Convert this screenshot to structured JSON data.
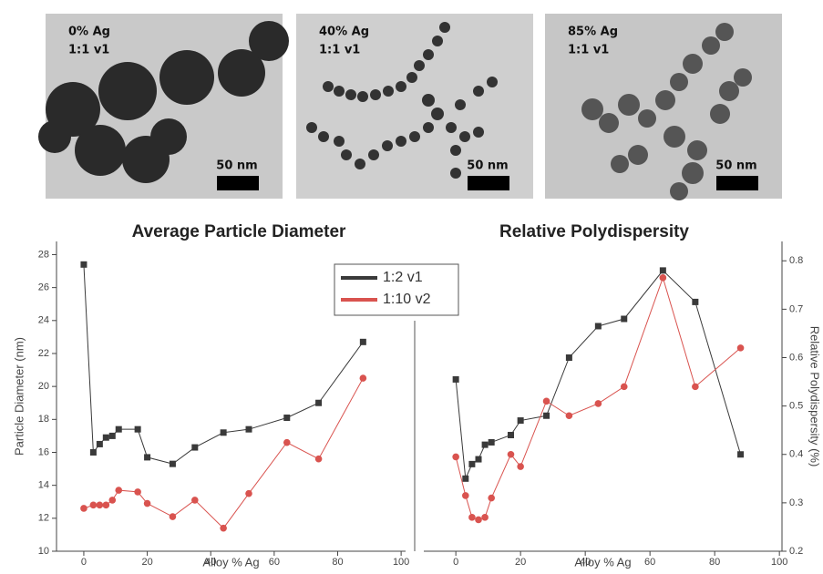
{
  "panels": [
    {
      "label": "0% Ag",
      "sublabel": "1:1 v1",
      "scale": "50 nm"
    },
    {
      "label": "40% Ag",
      "sublabel": "1:1 v1",
      "scale": "50 nm"
    },
    {
      "label": "85% Ag",
      "sublabel": "1:1 v1",
      "scale": "50 nm"
    }
  ],
  "chart_data": [
    {
      "type": "line",
      "title": "Average Particle Diameter",
      "x_label": "Alloy % Ag",
      "y_label": "Particle Diameter (nm)",
      "x": [
        0,
        3,
        5,
        7,
        9,
        11,
        17,
        20,
        28,
        35,
        44,
        52,
        64,
        74,
        88
      ],
      "series": [
        {
          "name": "1:2 v1",
          "color": "#3a3a3a",
          "marker": "square",
          "values": [
            27.4,
            16.0,
            16.5,
            16.9,
            17.0,
            17.4,
            17.4,
            15.7,
            15.3,
            16.3,
            17.2,
            17.4,
            18.1,
            19.0,
            22.7
          ]
        },
        {
          "name": "1:10 v2",
          "color": "#d9534f",
          "marker": "circle",
          "values": [
            12.6,
            12.8,
            12.8,
            12.8,
            13.1,
            13.7,
            13.6,
            12.9,
            12.1,
            13.1,
            11.4,
            13.5,
            16.6,
            15.6,
            20.5
          ]
        }
      ],
      "xlim": [
        -8.6,
        101.4
      ],
      "xticks": [
        0,
        20,
        40,
        60,
        80,
        100
      ],
      "ylim": [
        10,
        28.8
      ],
      "yticks": [
        10,
        12,
        14,
        16,
        18,
        20,
        22,
        24,
        26,
        28
      ],
      "y_axis_side": "left"
    },
    {
      "type": "line",
      "title": "Relative Polydispersity",
      "x_label": "Alloy % Ag",
      "y_label": "Relative Polydispersity (%)",
      "x": [
        0,
        3,
        5,
        7,
        9,
        11,
        17,
        20,
        28,
        35,
        44,
        52,
        64,
        74,
        88
      ],
      "series": [
        {
          "color": "#3a3a3a",
          "marker": "square",
          "values": [
            0.555,
            0.35,
            0.38,
            0.39,
            0.42,
            0.425,
            0.44,
            0.47,
            0.48,
            0.6,
            0.665,
            0.68,
            0.78,
            0.715,
            0.4
          ]
        },
        {
          "color": "#d9534f",
          "marker": "circle",
          "values": [
            0.395,
            0.315,
            0.27,
            0.265,
            0.27,
            0.31,
            0.4,
            0.375,
            0.51,
            0.48,
            0.505,
            0.54,
            0.765,
            0.54,
            0.62
          ]
        }
      ],
      "xlim": [
        -9.9,
        100.8
      ],
      "xticks": [
        0,
        20,
        40,
        60,
        80,
        100
      ],
      "ylim": [
        0.2,
        0.84
      ],
      "yticks": [
        0.2,
        0.3,
        0.4,
        0.5,
        0.6,
        0.7,
        0.8
      ],
      "y_axis_side": "right"
    }
  ]
}
